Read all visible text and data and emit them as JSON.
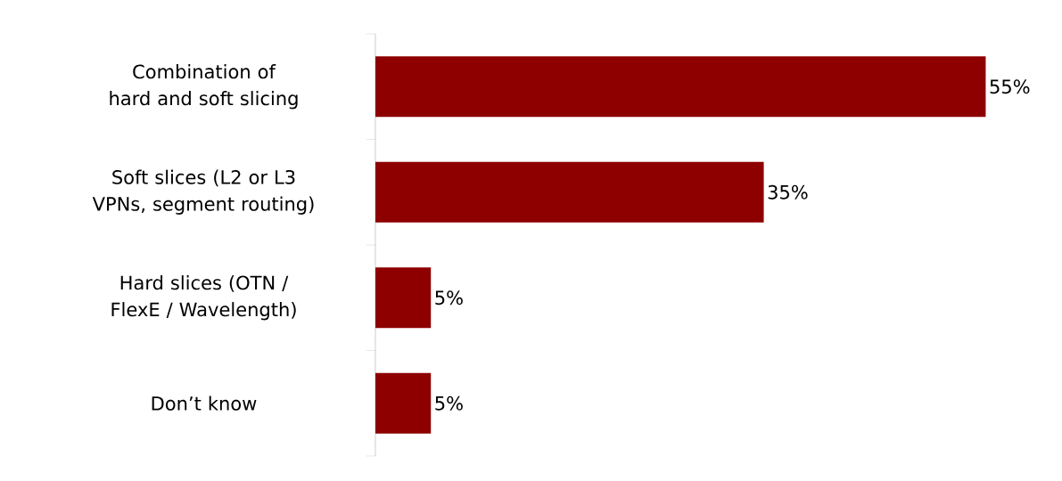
{
  "chart_data": {
    "type": "bar",
    "orientation": "horizontal",
    "categories": [
      "Combination of hard and soft slicing",
      "Soft slices (L2 or L3 VPNs, segment routing)",
      "Hard slices (OTN / FlexE / Wavelength)",
      "Don’t know"
    ],
    "values": [
      55,
      35,
      5,
      5
    ],
    "value_labels": [
      "55%",
      "35%",
      "5%",
      "5%"
    ],
    "color": "#8e0000"
  }
}
